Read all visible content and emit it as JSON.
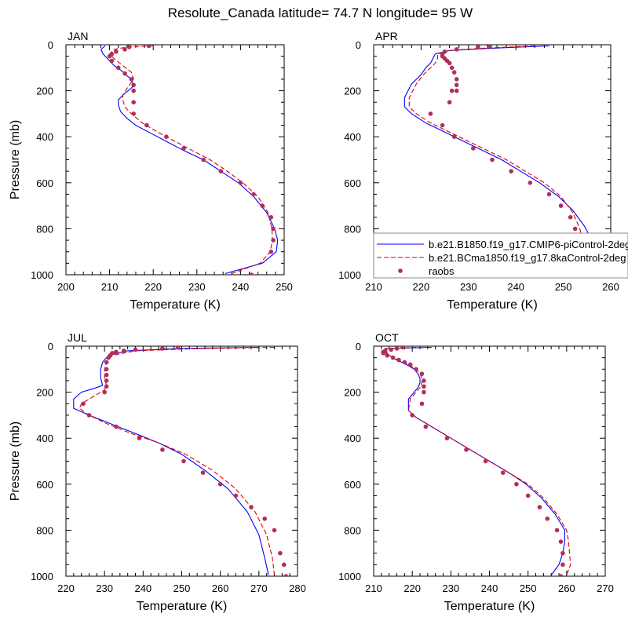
{
  "title": "Resolute_Canada  latitude= 74.7 N longitude= 95 W",
  "colors": {
    "series1": "#0000ff",
    "series2": "#e00000",
    "obs": "#b0305a",
    "axis": "#000000"
  },
  "legend": {
    "entries": [
      "b.e21.B1850.f19_g17.CMIP6-piControl-2deg",
      "b.e21.BCma1850.f19_g17.8kaControl-2deg",
      "raobs"
    ]
  },
  "chart_data": [
    {
      "type": "line",
      "panel": "JAN",
      "title": "JAN",
      "xlabel": "Temperature (K)",
      "ylabel": "Pressure (mb)",
      "xlim": [
        200,
        250
      ],
      "xticks": [
        200,
        210,
        220,
        230,
        240,
        250
      ],
      "ylim": [
        0,
        1000
      ],
      "yticks": [
        0,
        200,
        400,
        600,
        800,
        1000
      ],
      "y_inverted": true,
      "series": [
        {
          "name": "b.e21.B1850.f19_g17.CMIP6-piControl-2deg",
          "style": "solid",
          "x": [
            209,
            208,
            208.5,
            210,
            211,
            212.5,
            213.5,
            214,
            215,
            215.5,
            213,
            212,
            212,
            212.5,
            214,
            216,
            219,
            223,
            227,
            231.5,
            235.5,
            239.5,
            243,
            246,
            247.8,
            248.5,
            248.2,
            245,
            236.5
          ],
          "y": [
            5,
            20,
            40,
            70,
            90,
            110,
            125,
            135,
            150,
            180,
            220,
            240,
            260,
            290,
            320,
            350,
            380,
            420,
            460,
            500,
            550,
            600,
            660,
            730,
            800,
            850,
            900,
            950,
            995
          ]
        },
        {
          "name": "b.e21.BCma1850.f19_g17.8kaControl-2deg",
          "style": "dashed",
          "x": [
            220,
            214,
            211,
            210,
            211,
            213,
            215,
            215.5,
            214,
            213,
            213,
            213.5,
            215,
            217.5,
            221,
            225,
            229,
            233,
            237,
            240.5,
            244,
            246.3,
            247.2,
            247.3,
            246.8,
            244.5,
            238
          ],
          "y": [
            5,
            10,
            20,
            40,
            60,
            90,
            120,
            150,
            190,
            220,
            240,
            270,
            300,
            340,
            380,
            420,
            460,
            500,
            550,
            600,
            660,
            730,
            800,
            850,
            900,
            950,
            995
          ]
        },
        {
          "name": "raobs",
          "style": "markers",
          "x": [
            219,
            214.5,
            213.5,
            211.5,
            210.5,
            210,
            210.5,
            212,
            213.5,
            215,
            215.5,
            215.5,
            215.5,
            215.5,
            218.5,
            223,
            227,
            231.5,
            235.5,
            240,
            243,
            245,
            247,
            247.5,
            247.5,
            247,
            242.5
          ],
          "y": [
            5,
            10,
            20,
            30,
            40,
            50,
            70,
            100,
            125,
            150,
            175,
            200,
            250,
            300,
            350,
            400,
            450,
            500,
            550,
            600,
            650,
            700,
            750,
            800,
            850,
            900,
            1000
          ]
        }
      ]
    },
    {
      "type": "line",
      "panel": "APR",
      "title": "APR",
      "xlabel": "Temperature (K)",
      "ylabel": "Pressure (mb)",
      "xlim": [
        210,
        260
      ],
      "xticks": [
        210,
        220,
        230,
        240,
        250,
        260
      ],
      "ylim": [
        0,
        1000
      ],
      "yticks": [
        0,
        200,
        400,
        600,
        800,
        1000
      ],
      "y_inverted": true,
      "series": [
        {
          "name": "b.e21.B1850.f19_g17.CMIP6-piControl-2deg",
          "style": "solid",
          "x": [
            247,
            235,
            226,
            223,
            222.5,
            222,
            221,
            220,
            218,
            216.5,
            216.5,
            218,
            221,
            225,
            229,
            233,
            237,
            241,
            245,
            249,
            252,
            254.5,
            256,
            256,
            255,
            252.5,
            251
          ],
          "y": [
            5,
            15,
            25,
            40,
            60,
            80,
            100,
            130,
            170,
            230,
            270,
            300,
            340,
            380,
            420,
            460,
            500,
            550,
            600,
            660,
            720,
            790,
            850,
            900,
            950,
            980,
            995
          ]
        },
        {
          "name": "b.e21.BCma1850.f19_g17.8kaControl-2deg",
          "style": "dashed",
          "x": [
            244,
            233,
            226,
            223.5,
            223.5,
            223,
            222,
            220.5,
            219,
            217.5,
            217.5,
            219,
            222,
            226,
            230,
            234,
            238,
            242,
            246,
            249.5,
            252,
            253.5,
            254,
            253,
            251.5,
            250.5
          ],
          "y": [
            5,
            15,
            25,
            40,
            60,
            80,
            100,
            130,
            170,
            230,
            270,
            300,
            340,
            380,
            420,
            460,
            500,
            550,
            600,
            660,
            730,
            800,
            850,
            900,
            950,
            995
          ]
        },
        {
          "name": "raobs",
          "style": "markers",
          "x": [
            234.5,
            232,
            227.5,
            225,
            224.5,
            224.5,
            225,
            225.5,
            226,
            226.5,
            227,
            227.5,
            227.5,
            227.5,
            226,
            226.5,
            222,
            224.5,
            227,
            231,
            235,
            239,
            243,
            247,
            249.5,
            251.5,
            252.5,
            253.5,
            253.5,
            253,
            250.5
          ],
          "y": [
            5,
            10,
            20,
            30,
            40,
            50,
            60,
            70,
            80,
            100,
            120,
            150,
            175,
            200,
            250,
            200,
            300,
            350,
            400,
            450,
            500,
            550,
            600,
            650,
            700,
            750,
            800,
            850,
            900,
            950,
            1000
          ]
        }
      ]
    },
    {
      "type": "line",
      "panel": "JUL",
      "title": "JUL",
      "xlabel": "Temperature (K)",
      "ylabel": "Pressure (mb)",
      "xlim": [
        220,
        280
      ],
      "xticks": [
        220,
        230,
        240,
        250,
        260,
        270,
        280
      ],
      "ylim": [
        0,
        1000
      ],
      "yticks": [
        0,
        200,
        400,
        600,
        800,
        1000
      ],
      "y_inverted": true,
      "series": [
        {
          "name": "b.e21.B1850.f19_g17.CMIP6-piControl-2deg",
          "style": "solid",
          "x": [
            270,
            250,
            236,
            231,
            229.5,
            229,
            229,
            229.5,
            228,
            224,
            222,
            222,
            226,
            232,
            238,
            244,
            250,
            256,
            262,
            267,
            270,
            271.5,
            272.5
          ],
          "y": [
            5,
            10,
            20,
            40,
            70,
            100,
            140,
            170,
            180,
            200,
            230,
            270,
            300,
            340,
            380,
            420,
            470,
            540,
            620,
            720,
            820,
            920,
            995
          ]
        },
        {
          "name": "b.e21.BCma1850.f19_g17.8kaControl-2deg",
          "style": "dashed",
          "x": [
            274,
            255,
            238,
            232,
            230.5,
            230,
            230,
            230.5,
            230,
            227,
            224,
            223.5,
            226,
            231,
            237,
            244,
            251,
            258,
            264,
            269,
            272,
            273.5,
            274
          ],
          "y": [
            5,
            10,
            20,
            40,
            70,
            100,
            140,
            170,
            190,
            220,
            250,
            270,
            300,
            340,
            380,
            420,
            470,
            540,
            620,
            720,
            820,
            920,
            995
          ]
        },
        {
          "name": "raobs",
          "style": "markers",
          "x": [
            249,
            245,
            238,
            235,
            233,
            232,
            231.5,
            231,
            230.5,
            230.5,
            230.5,
            230.5,
            230.5,
            230,
            224.5,
            226,
            233,
            239,
            245,
            250.5,
            255.5,
            260,
            264,
            268,
            271.5,
            274,
            275.5,
            276.5,
            277
          ],
          "y": [
            5,
            10,
            15,
            20,
            25,
            30,
            40,
            50,
            70,
            100,
            125,
            150,
            175,
            200,
            250,
            300,
            350,
            400,
            450,
            500,
            550,
            600,
            650,
            700,
            750,
            800,
            900,
            950,
            1000
          ]
        }
      ]
    },
    {
      "type": "line",
      "panel": "OCT",
      "title": "OCT",
      "xlabel": "Temperature (K)",
      "ylabel": "Pressure (mb)",
      "xlim": [
        210,
        270
      ],
      "xticks": [
        210,
        220,
        230,
        240,
        250,
        260,
        270
      ],
      "ylim": [
        0,
        1000
      ],
      "yticks": [
        0,
        200,
        400,
        600,
        800,
        1000
      ],
      "y_inverted": true,
      "series": [
        {
          "name": "b.e21.B1850.f19_g17.CMIP6-piControl-2deg",
          "style": "solid",
          "x": [
            225,
            213.5,
            213,
            214,
            216,
            218.5,
            220.5,
            221.5,
            222,
            222,
            221.5,
            220.5,
            219,
            219,
            221,
            225,
            230,
            235,
            240,
            245,
            249.5,
            253.5,
            257,
            259.5,
            259.5,
            259,
            258,
            256
          ],
          "y": [
            5,
            10,
            20,
            40,
            60,
            80,
            100,
            120,
            140,
            160,
            180,
            200,
            230,
            280,
            310,
            350,
            400,
            450,
            500,
            550,
            600,
            660,
            730,
            800,
            850,
            900,
            950,
            995
          ]
        },
        {
          "name": "b.e21.BCma1850.f19_g17.8kaControl-2deg",
          "style": "dashed",
          "x": [
            221,
            213,
            212.5,
            214,
            216.5,
            219,
            221,
            222,
            222.5,
            222.5,
            222,
            221,
            219.5,
            219,
            221,
            225,
            230,
            235,
            240,
            245,
            250,
            254,
            257.5,
            260,
            260.5,
            261,
            260
          ],
          "y": [
            5,
            10,
            20,
            40,
            60,
            80,
            100,
            120,
            140,
            160,
            180,
            200,
            230,
            280,
            310,
            350,
            400,
            450,
            500,
            550,
            600,
            660,
            730,
            800,
            850,
            950,
            995
          ]
        },
        {
          "name": "raobs",
          "style": "markers",
          "x": [
            217.5,
            216,
            214.5,
            213,
            212.5,
            212.5,
            213.5,
            215,
            216.5,
            218,
            219.5,
            221,
            222.5,
            223,
            223,
            223,
            222.5,
            220,
            223.5,
            229,
            234,
            239,
            243.5,
            247,
            250,
            253,
            255,
            257.5,
            258.5,
            259,
            259,
            258.5
          ],
          "y": [
            5,
            10,
            15,
            20,
            25,
            30,
            40,
            50,
            60,
            70,
            80,
            100,
            120,
            150,
            175,
            200,
            250,
            300,
            350,
            400,
            450,
            500,
            550,
            600,
            650,
            700,
            750,
            800,
            850,
            900,
            950,
            1000
          ]
        }
      ]
    }
  ]
}
